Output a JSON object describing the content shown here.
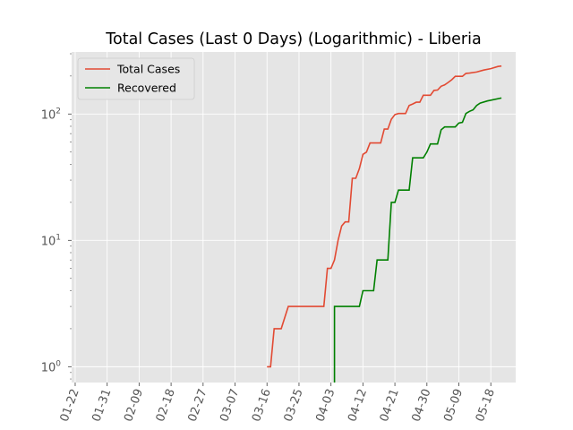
{
  "chart_data": {
    "type": "line",
    "title": "Total Cases (Last 0 Days) (Logarithmic) - Liberia",
    "xlabel": "",
    "ylabel": "",
    "y_scale": "log",
    "ylim": [
      0.75,
      310
    ],
    "xlim": [
      "2020-01-21",
      "2020-05-25"
    ],
    "grid": true,
    "legend_position": "top-left",
    "x_tick_labels": [
      "01-22",
      "01-31",
      "02-09",
      "02-18",
      "02-27",
      "03-07",
      "03-16",
      "03-25",
      "04-03",
      "04-12",
      "04-21",
      "04-30",
      "05-09",
      "05-18"
    ],
    "y_tick_labels": [
      {
        "value": 1,
        "label": "10",
        "exponent": "0"
      },
      {
        "value": 10,
        "label": "10",
        "exponent": "1"
      },
      {
        "value": 100,
        "label": "10",
        "exponent": "2"
      }
    ],
    "series": [
      {
        "name": "Total Cases",
        "color": "#e24a33",
        "points": [
          [
            "2020-03-16",
            1
          ],
          [
            "2020-03-17",
            1
          ],
          [
            "2020-03-18",
            2
          ],
          [
            "2020-03-19",
            2
          ],
          [
            "2020-03-20",
            2
          ],
          [
            "2020-03-22",
            3
          ],
          [
            "2020-04-01",
            3
          ],
          [
            "2020-04-02",
            6
          ],
          [
            "2020-04-03",
            6
          ],
          [
            "2020-04-04",
            7
          ],
          [
            "2020-04-05",
            10
          ],
          [
            "2020-04-06",
            13
          ],
          [
            "2020-04-07",
            14
          ],
          [
            "2020-04-08",
            14
          ],
          [
            "2020-04-09",
            31
          ],
          [
            "2020-04-10",
            31
          ],
          [
            "2020-04-11",
            37
          ],
          [
            "2020-04-12",
            48
          ],
          [
            "2020-04-13",
            50
          ],
          [
            "2020-04-14",
            59
          ],
          [
            "2020-04-17",
            59
          ],
          [
            "2020-04-18",
            76
          ],
          [
            "2020-04-19",
            76
          ],
          [
            "2020-04-20",
            91
          ],
          [
            "2020-04-21",
            99
          ],
          [
            "2020-04-22",
            101
          ],
          [
            "2020-04-24",
            101
          ],
          [
            "2020-04-25",
            117
          ],
          [
            "2020-04-26",
            120
          ],
          [
            "2020-04-27",
            124
          ],
          [
            "2020-04-28",
            124
          ],
          [
            "2020-04-29",
            141
          ],
          [
            "2020-04-30",
            141
          ],
          [
            "2020-05-01",
            141
          ],
          [
            "2020-05-02",
            154
          ],
          [
            "2020-05-03",
            155
          ],
          [
            "2020-05-04",
            166
          ],
          [
            "2020-05-05",
            170
          ],
          [
            "2020-05-06",
            178
          ],
          [
            "2020-05-07",
            187
          ],
          [
            "2020-05-08",
            199
          ],
          [
            "2020-05-10",
            199
          ],
          [
            "2020-05-11",
            210
          ],
          [
            "2020-05-12",
            211
          ],
          [
            "2020-05-14",
            215
          ],
          [
            "2020-05-16",
            223
          ],
          [
            "2020-05-18",
            229
          ],
          [
            "2020-05-20",
            238
          ],
          [
            "2020-05-21",
            240
          ]
        ]
      },
      {
        "name": "Recovered",
        "color": "#008000",
        "points": [
          [
            "2020-04-04",
            0.3
          ],
          [
            "2020-04-04",
            3
          ],
          [
            "2020-04-11",
            3
          ],
          [
            "2020-04-12",
            4
          ],
          [
            "2020-04-15",
            4
          ],
          [
            "2020-04-16",
            7
          ],
          [
            "2020-04-19",
            7
          ],
          [
            "2020-04-20",
            20
          ],
          [
            "2020-04-21",
            20
          ],
          [
            "2020-04-22",
            25
          ],
          [
            "2020-04-25",
            25
          ],
          [
            "2020-04-26",
            45
          ],
          [
            "2020-04-29",
            45
          ],
          [
            "2020-04-30",
            50
          ],
          [
            "2020-05-01",
            58
          ],
          [
            "2020-05-03",
            58
          ],
          [
            "2020-05-04",
            75
          ],
          [
            "2020-05-05",
            79
          ],
          [
            "2020-05-08",
            79
          ],
          [
            "2020-05-09",
            85
          ],
          [
            "2020-05-10",
            86
          ],
          [
            "2020-05-11",
            101
          ],
          [
            "2020-05-12",
            105
          ],
          [
            "2020-05-13",
            108
          ],
          [
            "2020-05-14",
            117
          ],
          [
            "2020-05-15",
            122
          ],
          [
            "2020-05-17",
            127
          ],
          [
            "2020-05-21",
            134
          ]
        ]
      }
    ]
  }
}
